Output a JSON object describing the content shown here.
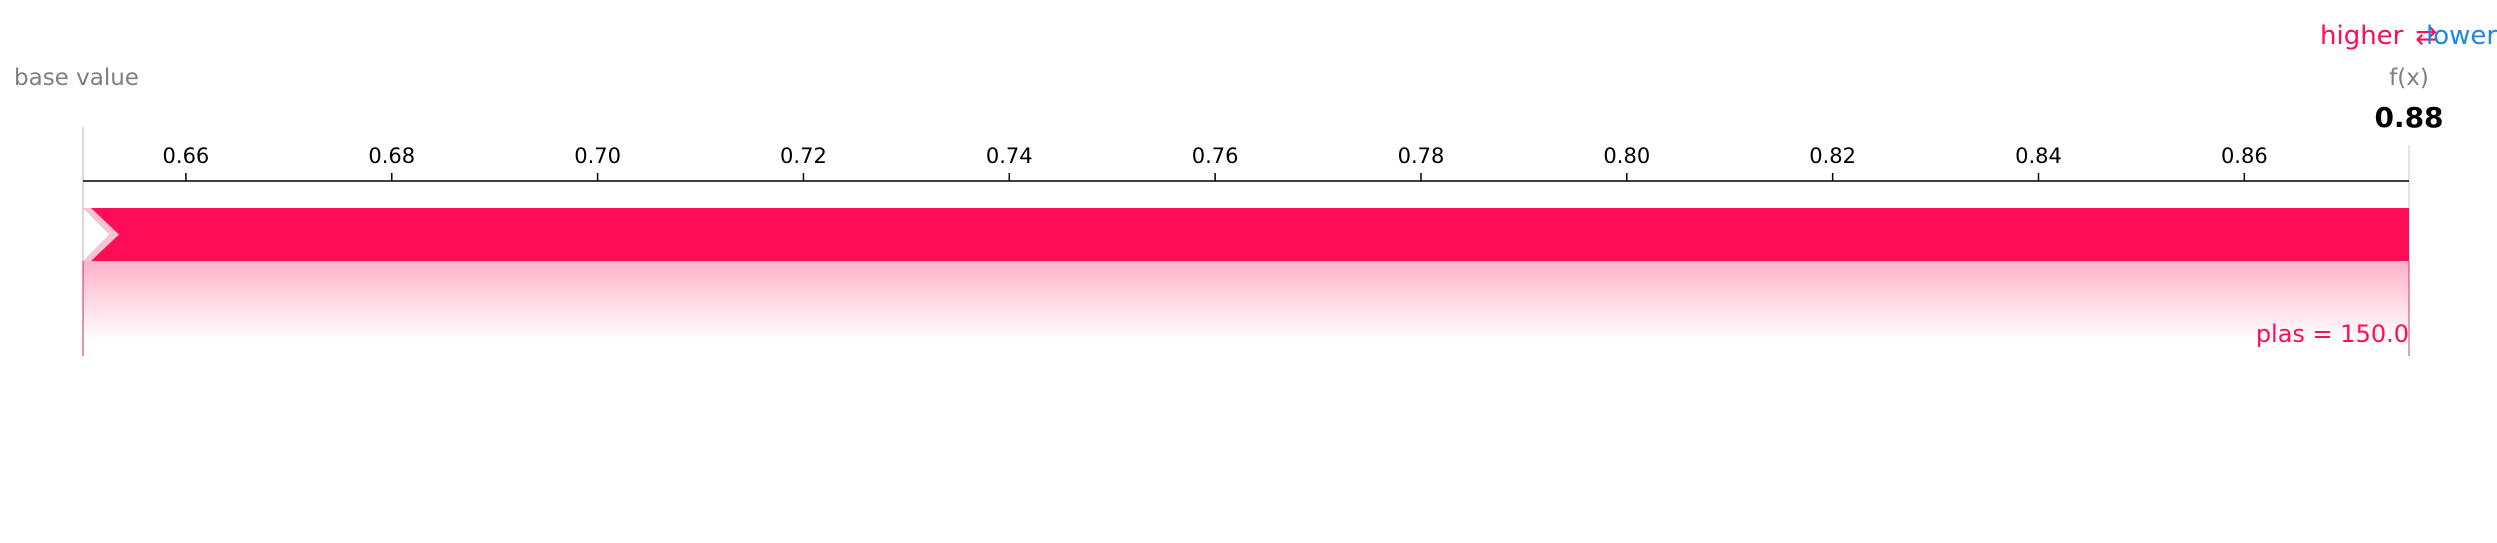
{
  "chart_data": {
    "type": "force",
    "base_label": "base value",
    "output_label": "f(x)",
    "output_value": 0.88,
    "output_value_text": "0.88",
    "axis": {
      "min": 0.65,
      "max": 0.876,
      "ticks": [
        0.66,
        0.68,
        0.7,
        0.72,
        0.74,
        0.76,
        0.78,
        0.8,
        0.82,
        0.84,
        0.86
      ],
      "tick_labels": [
        "0.66",
        "0.68",
        "0.70",
        "0.72",
        "0.74",
        "0.76",
        "0.78",
        "0.80",
        "0.82",
        "0.84",
        "0.86"
      ]
    },
    "legend": {
      "higher": "higher",
      "arrow": "⇄",
      "lower": "lower"
    },
    "features": [
      {
        "label": "plas = 150.0",
        "start": 0.65,
        "end": 0.876,
        "direction": "higher"
      }
    ]
  },
  "colors": {
    "higher": "#ff0d57",
    "lower": "#1e88e5",
    "muted": "#7f7f7f",
    "axis": "#000000"
  }
}
